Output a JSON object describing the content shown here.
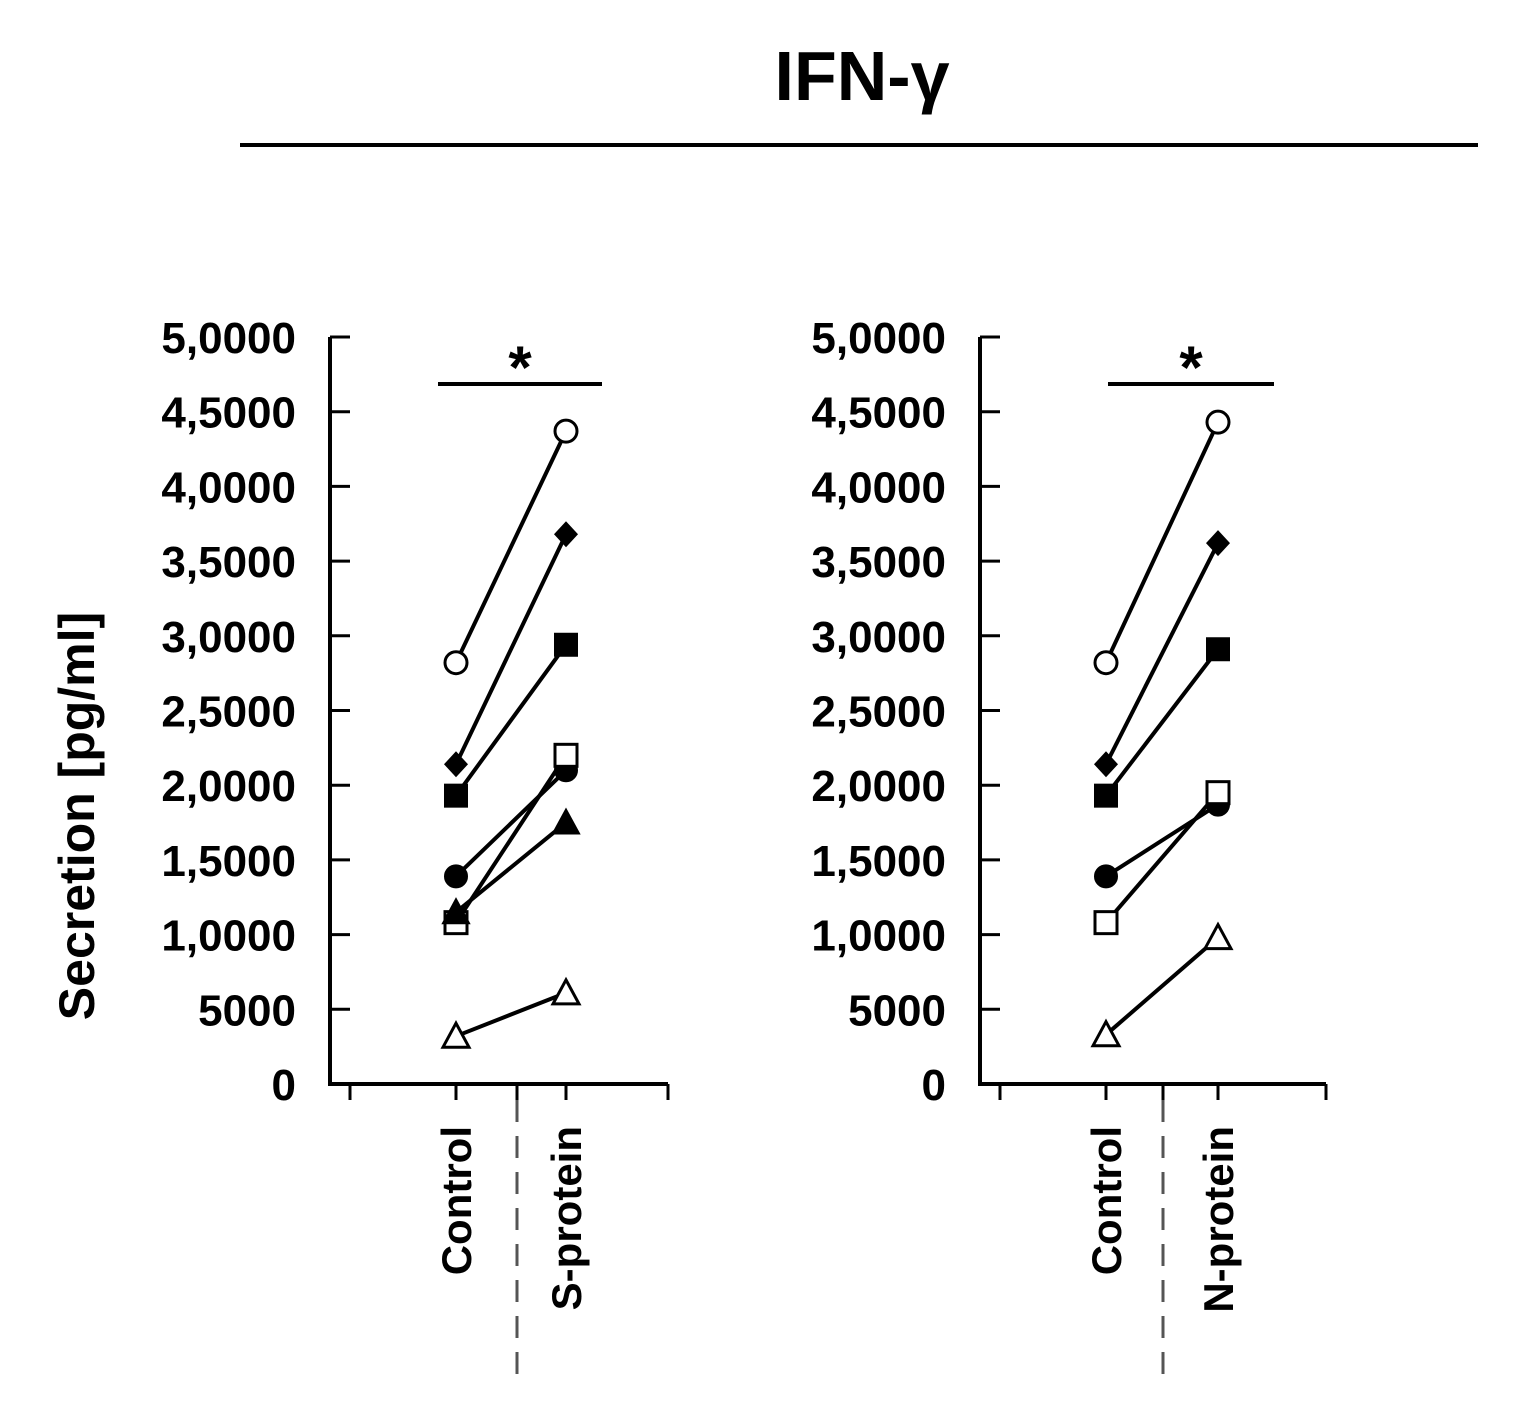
{
  "figure": {
    "title": "IFN-γ",
    "ylabel": "Secretion [pg/ml]"
  },
  "chart_data": [
    {
      "type": "line",
      "title": "",
      "xlabel": "",
      "ylabel": "Secretion [pg/ml]",
      "categories": [
        "Control",
        "S-protein"
      ],
      "ylim": [
        0,
        50000
      ],
      "yticks": [
        "0",
        "5000",
        "1,0000",
        "1,5000",
        "2,0000",
        "2,5000",
        "3,0000",
        "3,5000",
        "4,0000",
        "4,5000",
        "5,0000"
      ],
      "yticks_values": [
        0,
        5000,
        10000,
        15000,
        20000,
        25000,
        30000,
        35000,
        40000,
        45000,
        50000
      ],
      "significance": "*",
      "series": [
        {
          "marker": "open-circle",
          "values": [
            28200,
            43700
          ]
        },
        {
          "marker": "filled-diamond",
          "values": [
            21400,
            36800
          ]
        },
        {
          "marker": "filled-square",
          "values": [
            19300,
            29400
          ]
        },
        {
          "marker": "filled-circle",
          "values": [
            13900,
            21000
          ]
        },
        {
          "marker": "open-square",
          "values": [
            10800,
            22000
          ]
        },
        {
          "marker": "filled-triangle",
          "values": [
            11500,
            17500
          ]
        },
        {
          "marker": "open-triangle",
          "values": [
            3200,
            6100
          ]
        }
      ]
    },
    {
      "type": "line",
      "title": "",
      "xlabel": "",
      "ylabel": "",
      "categories": [
        "Control",
        "N-protein"
      ],
      "ylim": [
        0,
        50000
      ],
      "yticks": [
        "0",
        "5000",
        "1,0000",
        "1,5000",
        "2,0000",
        "2,5000",
        "3,0000",
        "3,5000",
        "4,0000",
        "4,5000",
        "5,0000"
      ],
      "yticks_values": [
        0,
        5000,
        10000,
        15000,
        20000,
        25000,
        30000,
        35000,
        40000,
        45000,
        50000
      ],
      "significance": "*",
      "series": [
        {
          "marker": "open-circle",
          "values": [
            28200,
            44300
          ]
        },
        {
          "marker": "filled-diamond",
          "values": [
            21400,
            36200
          ]
        },
        {
          "marker": "filled-square",
          "values": [
            19300,
            29100
          ]
        },
        {
          "marker": "filled-circle",
          "values": [
            13900,
            18700
          ]
        },
        {
          "marker": "open-square",
          "values": [
            10800,
            19500
          ]
        },
        {
          "marker": "open-triangle",
          "values": [
            3300,
            9800
          ]
        }
      ]
    }
  ]
}
